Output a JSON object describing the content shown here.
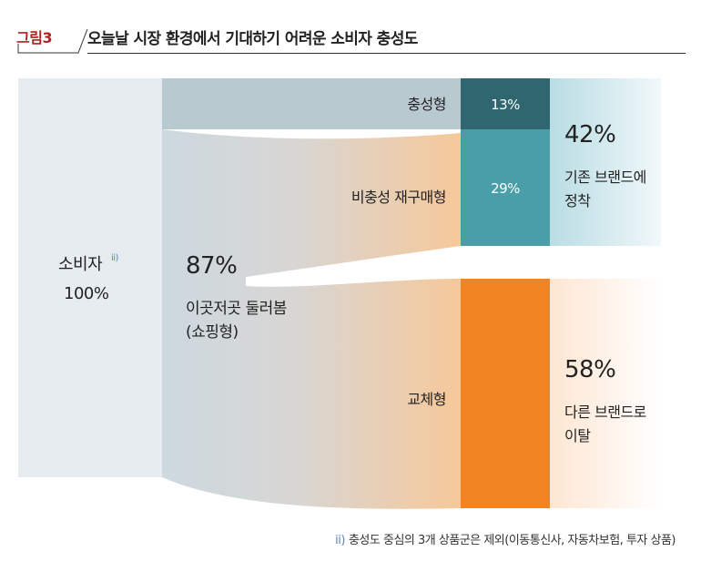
{
  "header": {
    "figure_label": "그림3",
    "title": "오늘날 시장 환경에서 기대하기 어려운 소비자 충성도"
  },
  "consumer": {
    "label": "소비자",
    "note_mark": "ii)",
    "percent": "100%"
  },
  "loyal": {
    "label": "충성형",
    "percent": "13%"
  },
  "repurchase": {
    "label": "비충성 재구매형",
    "percent": "29%"
  },
  "shopping": {
    "percent": "87%",
    "label_line1": "이곳저곳 둘러봄",
    "label_line2": "(쇼핑형)"
  },
  "switch": {
    "label": "교체형"
  },
  "retain": {
    "percent": "42%",
    "label_line1": "기존 브랜드에",
    "label_line2": "정착"
  },
  "leave": {
    "percent": "58%",
    "label_line1": "다른 브랜드로",
    "label_line2": "이탈"
  },
  "footnote": {
    "mark": "ii)",
    "text": "충성도 중심의 3개 상품군은 제외(이동통신사, 자동차보험, 투자 상품)"
  },
  "colors": {
    "loyal": "#2f6670",
    "repurchase": "#4a9ea8",
    "switch": "#f28421",
    "retain": "#cfe6ec",
    "figure_label": "#b22222"
  }
}
